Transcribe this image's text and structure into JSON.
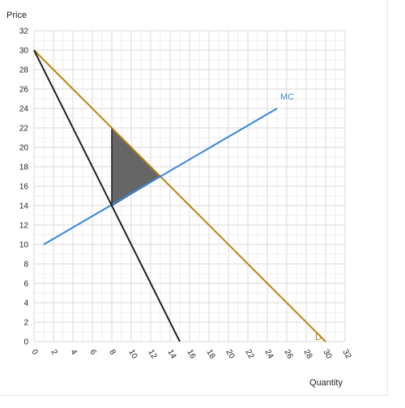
{
  "chart_data": {
    "type": "line",
    "xlabel": "Quantity",
    "ylabel": "Price",
    "xlim": [
      0,
      32
    ],
    "ylim": [
      0,
      32
    ],
    "x_ticks": [
      0,
      2,
      4,
      6,
      8,
      10,
      12,
      14,
      16,
      18,
      20,
      22,
      24,
      26,
      28,
      30,
      32
    ],
    "y_ticks": [
      0,
      2,
      4,
      6,
      8,
      10,
      12,
      14,
      16,
      18,
      20,
      22,
      24,
      26,
      28,
      30,
      32
    ],
    "grid": true,
    "series": [
      {
        "name": "D",
        "color": "#b8860b",
        "points": [
          [
            0,
            30
          ],
          [
            30,
            0
          ]
        ]
      },
      {
        "name": "MC",
        "color": "#3a86d9",
        "points": [
          [
            1,
            10
          ],
          [
            25,
            24
          ]
        ]
      },
      {
        "name": "",
        "color": "#222222",
        "points": [
          [
            0,
            30
          ],
          [
            15,
            0
          ]
        ]
      }
    ],
    "shaded_region": {
      "color": "#666666",
      "points": [
        [
          8,
          22
        ],
        [
          8,
          14
        ],
        [
          13,
          17
        ]
      ]
    }
  }
}
